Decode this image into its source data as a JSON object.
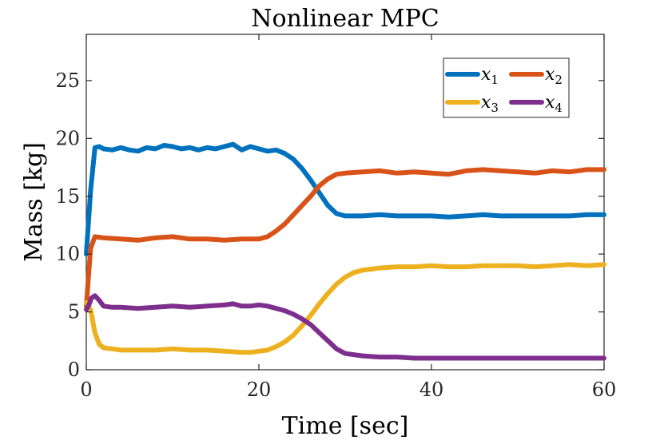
{
  "chart_data": {
    "type": "line",
    "title": "Nonlinear MPC",
    "xlabel": "Time [sec]",
    "ylabel": "Mass [kg]",
    "xlim": [
      0,
      60
    ],
    "ylim": [
      0,
      29
    ],
    "xticks": [
      0,
      20,
      40,
      60
    ],
    "yticks": [
      0,
      5,
      10,
      15,
      20,
      25
    ],
    "grid": false,
    "legend_position": "top-right",
    "series": [
      {
        "name": "x1",
        "color": "#0072BD",
        "x": [
          0,
          0.5,
          1,
          1.5,
          2,
          3,
          4,
          5,
          6,
          7,
          8,
          9,
          10,
          11,
          12,
          13,
          14,
          15,
          16,
          17,
          18,
          19,
          20,
          21,
          22,
          23,
          24,
          25,
          26,
          27,
          28,
          29,
          30,
          32,
          34,
          36,
          38,
          40,
          42,
          44,
          46,
          48,
          50,
          52,
          54,
          56,
          58,
          60
        ],
        "y": [
          10,
          15.5,
          19.2,
          19.3,
          19.1,
          19.0,
          19.2,
          19.0,
          18.9,
          19.2,
          19.1,
          19.4,
          19.3,
          19.1,
          19.2,
          19.0,
          19.2,
          19.1,
          19.3,
          19.5,
          19.0,
          19.3,
          19.1,
          18.9,
          19.0,
          18.7,
          18.2,
          17.4,
          16.4,
          15.3,
          14.2,
          13.5,
          13.3,
          13.3,
          13.4,
          13.3,
          13.3,
          13.3,
          13.2,
          13.3,
          13.4,
          13.3,
          13.3,
          13.3,
          13.3,
          13.3,
          13.4,
          13.4
        ]
      },
      {
        "name": "x2",
        "color": "#D95319",
        "x": [
          0,
          0.5,
          1,
          2,
          4,
          6,
          8,
          10,
          12,
          14,
          16,
          18,
          20,
          21,
          22,
          23,
          24,
          25,
          26,
          27,
          28,
          29,
          30,
          32,
          34,
          36,
          38,
          40,
          42,
          44,
          46,
          48,
          50,
          52,
          54,
          56,
          58,
          60
        ],
        "y": [
          5.5,
          10.5,
          11.5,
          11.4,
          11.3,
          11.2,
          11.4,
          11.5,
          11.3,
          11.3,
          11.2,
          11.3,
          11.3,
          11.5,
          12.0,
          12.6,
          13.4,
          14.2,
          15.0,
          15.9,
          16.5,
          16.9,
          17.0,
          17.1,
          17.2,
          17.0,
          17.1,
          17.0,
          16.9,
          17.2,
          17.3,
          17.2,
          17.1,
          17.0,
          17.2,
          17.1,
          17.3,
          17.3
        ]
      },
      {
        "name": "x3",
        "color": "#EDB120",
        "x": [
          0,
          0.5,
          1,
          1.5,
          2,
          3,
          4,
          6,
          8,
          10,
          12,
          14,
          16,
          18,
          19,
          20,
          21,
          22,
          23,
          24,
          25,
          26,
          27,
          28,
          29,
          30,
          31,
          32,
          34,
          36,
          38,
          40,
          42,
          44,
          46,
          48,
          50,
          52,
          54,
          56,
          58,
          60
        ],
        "y": [
          5.8,
          5.2,
          3.2,
          2.2,
          1.9,
          1.8,
          1.7,
          1.7,
          1.7,
          1.8,
          1.7,
          1.7,
          1.6,
          1.5,
          1.5,
          1.6,
          1.7,
          2.0,
          2.4,
          3.0,
          3.8,
          4.7,
          5.7,
          6.6,
          7.4,
          8.0,
          8.4,
          8.6,
          8.8,
          8.9,
          8.9,
          9.0,
          8.9,
          8.9,
          9.0,
          9.0,
          9.0,
          8.9,
          9.0,
          9.1,
          9.0,
          9.1
        ]
      },
      {
        "name": "x4",
        "color": "#7E2F8E",
        "x": [
          0,
          0.3,
          0.6,
          1,
          1.5,
          2,
          3,
          4,
          6,
          8,
          10,
          12,
          14,
          16,
          17,
          18,
          19,
          20,
          21,
          22,
          23,
          24,
          25,
          26,
          27,
          28,
          29,
          30,
          32,
          34,
          36,
          38,
          40,
          42,
          44,
          46,
          48,
          50,
          52,
          54,
          56,
          58,
          60
        ],
        "y": [
          5.2,
          5.6,
          6.2,
          6.4,
          6.0,
          5.5,
          5.4,
          5.4,
          5.3,
          5.4,
          5.5,
          5.4,
          5.5,
          5.6,
          5.7,
          5.5,
          5.5,
          5.6,
          5.5,
          5.3,
          5.1,
          4.8,
          4.4,
          3.9,
          3.2,
          2.5,
          1.8,
          1.4,
          1.2,
          1.1,
          1.1,
          1.0,
          1.0,
          1.0,
          1.0,
          1.0,
          1.0,
          1.0,
          1.0,
          1.0,
          1.0,
          1.0,
          1.0
        ]
      }
    ]
  },
  "legend": [
    {
      "symbol": "x",
      "sub": "1"
    },
    {
      "symbol": "x",
      "sub": "2"
    },
    {
      "symbol": "x",
      "sub": "3"
    },
    {
      "symbol": "x",
      "sub": "4"
    }
  ]
}
